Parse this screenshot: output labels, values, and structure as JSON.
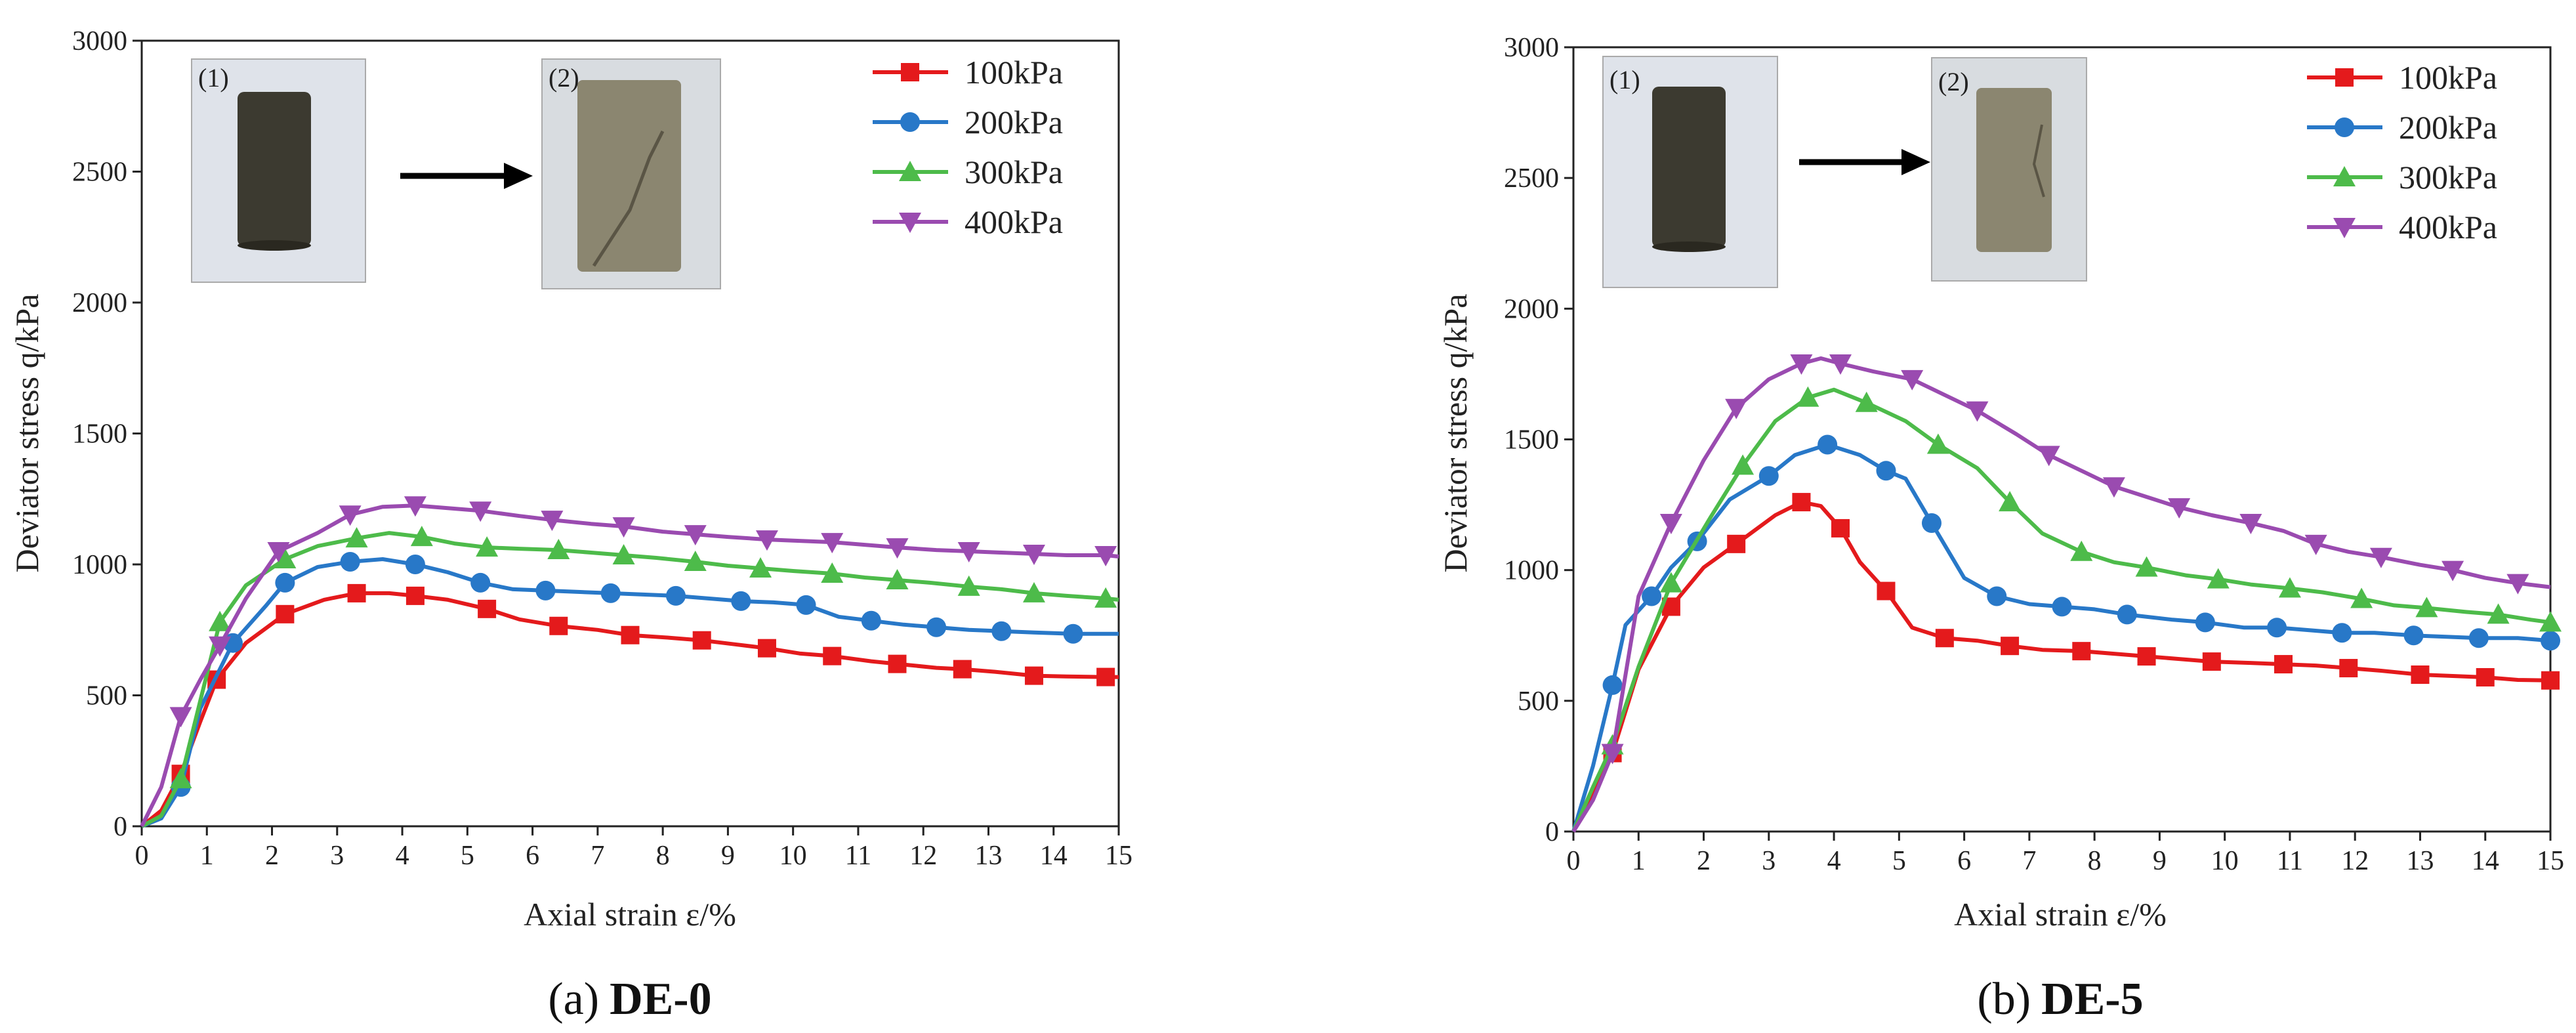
{
  "figure": {
    "captions": [
      {
        "prefix": "(a)",
        "name": "DE-0"
      },
      {
        "prefix": "(b)",
        "name": "DE-5"
      }
    ],
    "inset_labels": [
      "(1)",
      "(2)"
    ]
  },
  "chart_data": [
    {
      "type": "line",
      "title": "(a) DE-0",
      "xlabel": "Axial strain ε/%",
      "ylabel": "Deviator stress q/kPa",
      "xlim": [
        0,
        15
      ],
      "ylim": [
        0,
        3000
      ],
      "xticks": [
        0,
        1,
        2,
        3,
        4,
        5,
        6,
        7,
        8,
        9,
        10,
        11,
        12,
        13,
        14,
        15
      ],
      "yticks": [
        0,
        500,
        1000,
        1500,
        2000,
        2500,
        3000
      ],
      "legend_position": "top-right",
      "series": [
        {
          "name": "100kPa",
          "color": "#e41a1c",
          "marker": "square",
          "x": [
            0,
            0.3,
            0.6,
            0.9,
            1.15,
            1.6,
            2.2,
            2.8,
            3.3,
            3.8,
            4.2,
            4.7,
            5.3,
            5.8,
            6.4,
            7,
            7.5,
            8.1,
            8.6,
            9.1,
            9.6,
            10.1,
            10.6,
            11.2,
            11.6,
            12.2,
            12.6,
            13.1,
            13.7,
            14.2,
            14.8,
            15
          ],
          "y": [
            0,
            60,
            200,
            400,
            560,
            700,
            810,
            865,
            890,
            890,
            880,
            865,
            830,
            790,
            765,
            750,
            730,
            720,
            710,
            695,
            680,
            660,
            650,
            630,
            620,
            605,
            600,
            590,
            575,
            572,
            570,
            570
          ]
        },
        {
          "name": "200kPa",
          "color": "#2878c8",
          "marker": "circle",
          "x": [
            0,
            0.3,
            0.6,
            0.9,
            1.4,
            1.9,
            2.2,
            2.7,
            3.2,
            3.7,
            4.2,
            4.7,
            5.2,
            5.7,
            6.2,
            6.7,
            7.2,
            7.7,
            8.2,
            8.7,
            9.2,
            9.7,
            10.2,
            10.7,
            11.2,
            11.7,
            12.2,
            12.7,
            13.2,
            13.7,
            14.3,
            15
          ],
          "y": [
            0,
            30,
            150,
            450,
            700,
            840,
            930,
            990,
            1010,
            1020,
            1000,
            970,
            930,
            905,
            900,
            895,
            890,
            885,
            880,
            870,
            860,
            855,
            845,
            800,
            785,
            770,
            760,
            750,
            745,
            740,
            735,
            735
          ]
        },
        {
          "name": "300kPa",
          "color": "#4dbb4a",
          "marker": "triangle-up",
          "x": [
            0,
            0.3,
            0.6,
            0.9,
            1.2,
            1.6,
            2.2,
            2.7,
            3.3,
            3.8,
            4.3,
            4.8,
            5.3,
            5.8,
            6.4,
            6.9,
            7.4,
            7.9,
            8.5,
            9,
            9.5,
            10,
            10.6,
            11.1,
            11.6,
            12.1,
            12.7,
            13.2,
            13.7,
            14.2,
            14.8,
            15
          ],
          "y": [
            0,
            40,
            180,
            480,
            780,
            920,
            1020,
            1070,
            1100,
            1120,
            1105,
            1080,
            1065,
            1060,
            1055,
            1045,
            1035,
            1025,
            1010,
            995,
            985,
            975,
            965,
            950,
            940,
            930,
            915,
            905,
            890,
            880,
            870,
            865
          ]
        },
        {
          "name": "400kPa",
          "color": "#9a4bb0",
          "marker": "triangle-down",
          "x": [
            0,
            0.3,
            0.6,
            0.9,
            1.2,
            1.6,
            2.1,
            2.7,
            3.2,
            3.7,
            4.2,
            4.7,
            5.2,
            5.8,
            6.3,
            6.9,
            7.4,
            8,
            8.5,
            9,
            9.6,
            10.1,
            10.6,
            11.1,
            11.6,
            12.2,
            12.7,
            13.2,
            13.7,
            14.2,
            14.8,
            15
          ],
          "y": [
            0,
            150,
            420,
            560,
            690,
            870,
            1050,
            1120,
            1190,
            1220,
            1225,
            1215,
            1205,
            1185,
            1170,
            1155,
            1145,
            1125,
            1115,
            1105,
            1095,
            1090,
            1085,
            1075,
            1065,
            1055,
            1050,
            1045,
            1040,
            1035,
            1035,
            1030
          ]
        }
      ]
    },
    {
      "type": "line",
      "title": "(b) DE-5",
      "xlabel": "Axial strain ε/%",
      "ylabel": "Deviator stress q/kPa",
      "xlim": [
        0,
        15
      ],
      "ylim": [
        0,
        3000
      ],
      "xticks": [
        0,
        1,
        2,
        3,
        4,
        5,
        6,
        7,
        8,
        9,
        10,
        11,
        12,
        13,
        14,
        15
      ],
      "yticks": [
        0,
        500,
        1000,
        1500,
        2000,
        2500,
        3000
      ],
      "legend_position": "top-right",
      "series": [
        {
          "name": "100kPa",
          "color": "#e41a1c",
          "marker": "square",
          "x": [
            0,
            0.3,
            0.6,
            1,
            1.5,
            2,
            2.5,
            3.1,
            3.5,
            3.8,
            4.1,
            4.4,
            4.8,
            5.2,
            5.7,
            6.2,
            6.7,
            7.2,
            7.8,
            8.3,
            8.8,
            9.3,
            9.8,
            10.4,
            10.9,
            11.4,
            11.9,
            12.4,
            13,
            13.5,
            14,
            14.5,
            15
          ],
          "y": [
            0,
            150,
            300,
            620,
            860,
            1010,
            1100,
            1210,
            1260,
            1245,
            1160,
            1030,
            920,
            780,
            740,
            730,
            710,
            695,
            690,
            680,
            670,
            660,
            650,
            645,
            640,
            635,
            625,
            615,
            600,
            595,
            590,
            580,
            578
          ]
        },
        {
          "name": "200kPa",
          "color": "#2878c8",
          "marker": "circle",
          "x": [
            0,
            0.3,
            0.6,
            0.8,
            1.2,
            1.5,
            1.9,
            2.4,
            3,
            3.4,
            3.9,
            4.4,
            4.8,
            5.1,
            5.5,
            6,
            6.5,
            7,
            7.5,
            8,
            8.5,
            9.2,
            9.7,
            10.3,
            10.8,
            11.3,
            11.8,
            12.3,
            12.9,
            13.4,
            13.9,
            14.5,
            15
          ],
          "y": [
            0,
            250,
            560,
            790,
            900,
            1010,
            1110,
            1270,
            1360,
            1440,
            1480,
            1440,
            1380,
            1350,
            1180,
            970,
            900,
            870,
            860,
            850,
            830,
            810,
            800,
            780,
            780,
            770,
            760,
            760,
            750,
            745,
            740,
            740,
            730
          ]
        },
        {
          "name": "300kPa",
          "color": "#4dbb4a",
          "marker": "triangle-up",
          "x": [
            0,
            0.3,
            0.6,
            1,
            1.5,
            2.1,
            2.6,
            3.1,
            3.6,
            4,
            4.5,
            5.1,
            5.6,
            6.2,
            6.7,
            7.2,
            7.8,
            8.3,
            8.8,
            9.4,
            9.9,
            10.4,
            11,
            11.5,
            12.1,
            12.6,
            13.1,
            13.7,
            14.2,
            14.7,
            15
          ],
          "y": [
            0,
            170,
            330,
            630,
            950,
            1200,
            1400,
            1570,
            1660,
            1690,
            1640,
            1570,
            1480,
            1390,
            1260,
            1140,
            1070,
            1030,
            1010,
            980,
            965,
            945,
            930,
            915,
            890,
            865,
            855,
            840,
            830,
            810,
            800
          ]
        },
        {
          "name": "400kPa",
          "color": "#9a4bb0",
          "marker": "triangle-down",
          "x": [
            0,
            0.3,
            0.6,
            1,
            1.5,
            2,
            2.5,
            3,
            3.5,
            3.8,
            4.1,
            4.6,
            5.2,
            5.7,
            6.2,
            6.8,
            7.3,
            7.8,
            8.3,
            8.8,
            9.3,
            9.8,
            10.4,
            10.9,
            11.4,
            11.9,
            12.4,
            13,
            13.5,
            14,
            14.5,
            15
          ],
          "y": [
            0,
            120,
            300,
            900,
            1180,
            1420,
            1620,
            1730,
            1790,
            1810,
            1790,
            1760,
            1730,
            1670,
            1610,
            1520,
            1440,
            1380,
            1320,
            1280,
            1240,
            1210,
            1180,
            1150,
            1100,
            1070,
            1050,
            1020,
            1000,
            970,
            950,
            935
          ]
        }
      ]
    }
  ]
}
